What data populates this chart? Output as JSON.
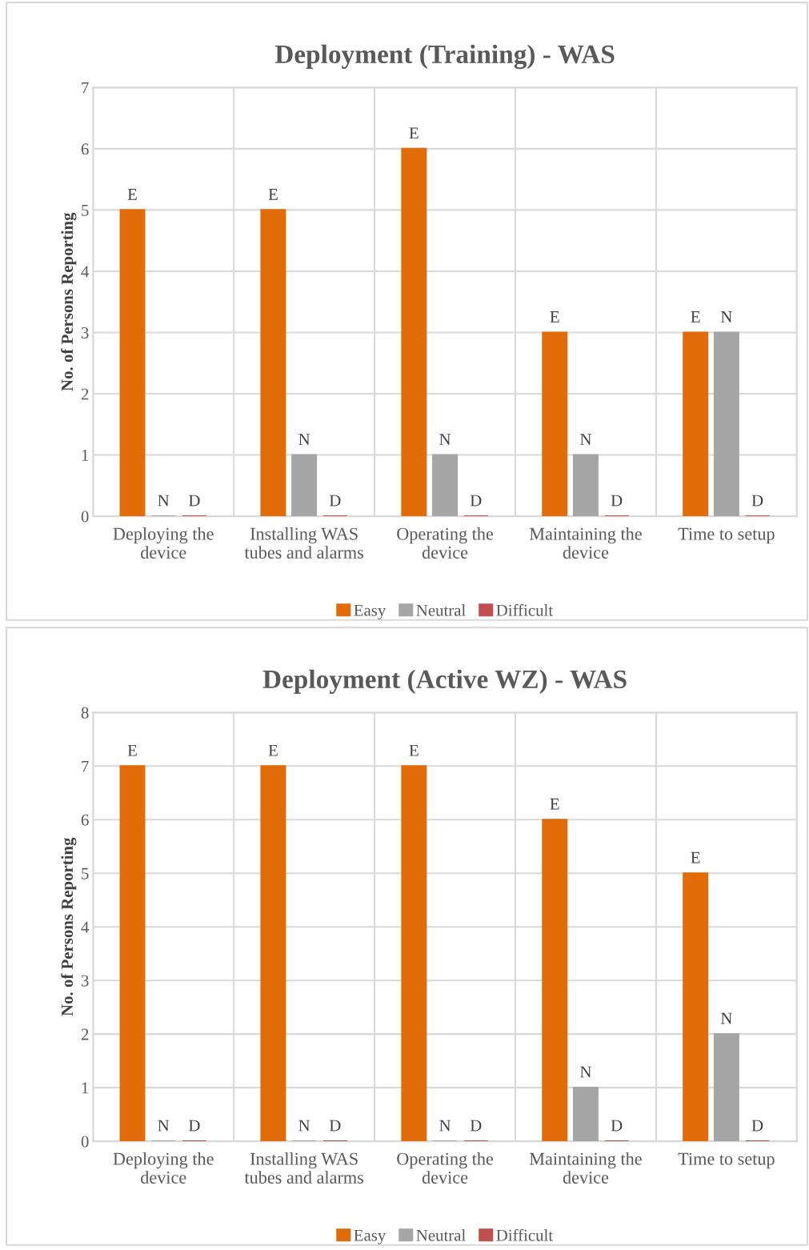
{
  "chart_data": [
    {
      "type": "bar",
      "title": "Deployment (Training) - WAS",
      "ylabel": "No. of Persons Reporting",
      "categories": [
        "Deploying the device",
        "Installing WAS tubes and alarms",
        "Operating the device",
        "Maintaining the device",
        "Time to setup"
      ],
      "series": [
        {
          "name": "Easy",
          "color": "#e36c0a",
          "values": [
            5,
            5,
            6,
            3,
            3
          ],
          "value_labels": [
            "E",
            "E",
            "E",
            "E",
            "E"
          ]
        },
        {
          "name": "Neutral",
          "color": "#a6a6a6",
          "values": [
            0,
            1,
            1,
            1,
            3
          ],
          "value_labels": [
            "N",
            "N",
            "N",
            "N",
            "N"
          ]
        },
        {
          "name": "Difficult",
          "color": "#c0504d",
          "values": [
            0,
            0,
            0,
            0,
            0
          ],
          "value_labels": [
            "D",
            "D",
            "D",
            "D",
            "D"
          ]
        }
      ],
      "ylim": [
        0,
        7
      ],
      "yticks": [
        0,
        1,
        2,
        3,
        4,
        5,
        6,
        7
      ],
      "grid": true,
      "legend": "bottom"
    },
    {
      "type": "bar",
      "title": "Deployment (Active WZ) - WAS",
      "ylabel": "No. of Persons Reporting",
      "categories": [
        "Deploying the device",
        "Installing WAS tubes and alarms",
        "Operating the device",
        "Maintaining the device",
        "Time to setup"
      ],
      "series": [
        {
          "name": "Easy",
          "color": "#e36c0a",
          "values": [
            7,
            7,
            7,
            6,
            5
          ],
          "value_labels": [
            "E",
            "E",
            "E",
            "E",
            "E"
          ]
        },
        {
          "name": "Neutral",
          "color": "#a6a6a6",
          "values": [
            0,
            0,
            0,
            1,
            2
          ],
          "value_labels": [
            "N",
            "N",
            "N",
            "N",
            "N"
          ]
        },
        {
          "name": "Difficult",
          "color": "#c0504d",
          "values": [
            0,
            0,
            0,
            0,
            0
          ],
          "value_labels": [
            "D",
            "D",
            "D",
            "D",
            "D"
          ]
        }
      ],
      "ylim": [
        0,
        8
      ],
      "yticks": [
        0,
        1,
        2,
        3,
        4,
        5,
        6,
        7,
        8
      ],
      "grid": true,
      "legend": "bottom"
    }
  ]
}
